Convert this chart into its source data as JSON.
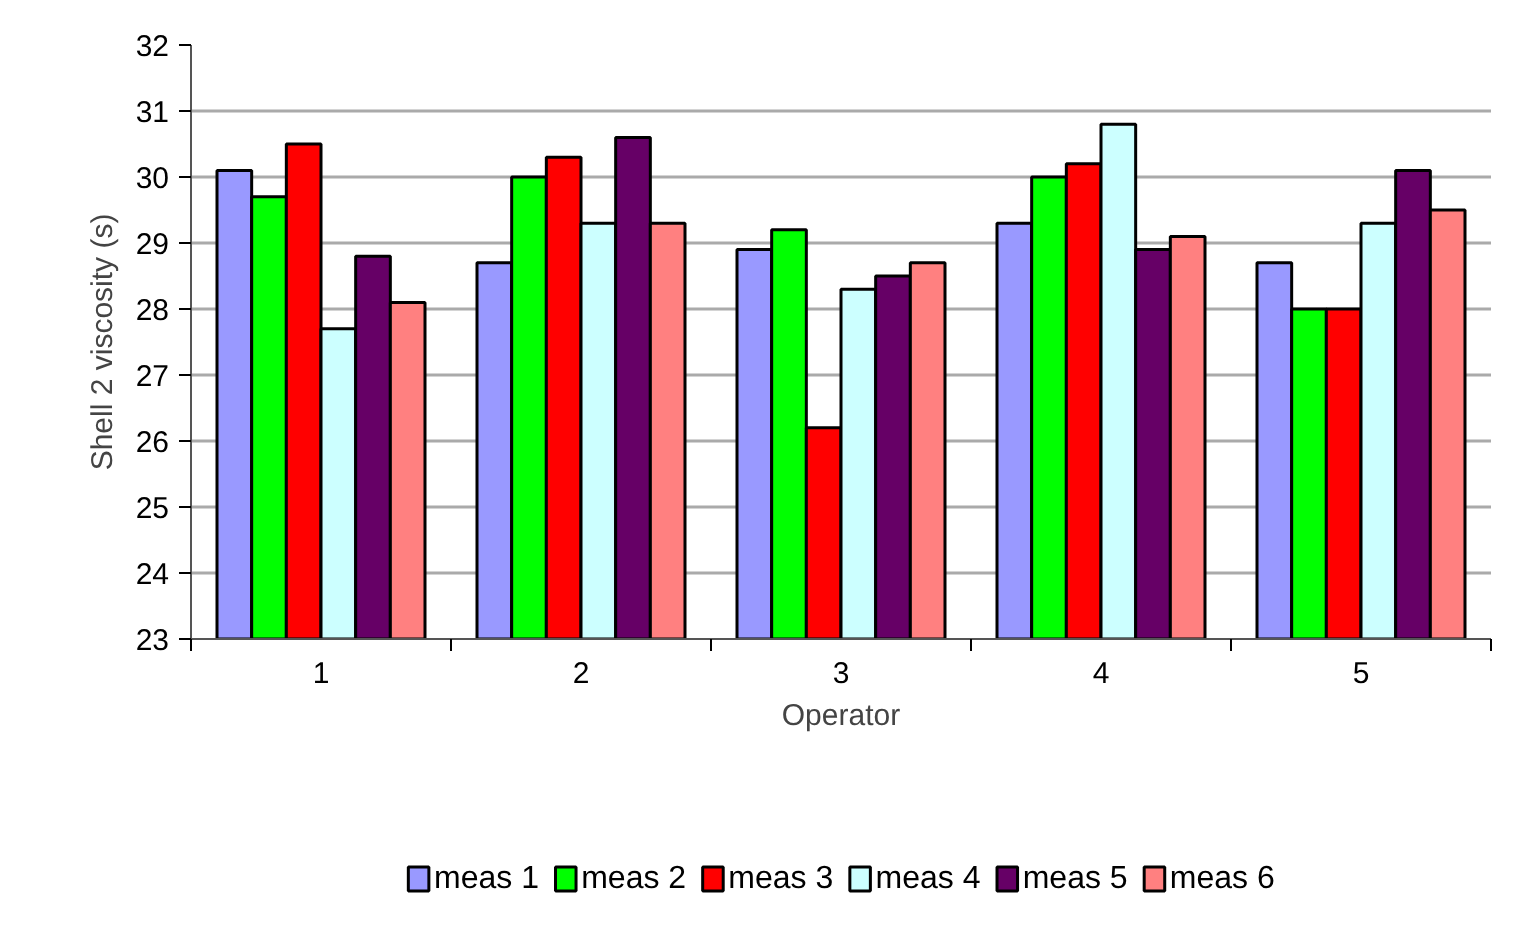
{
  "chart_data": {
    "type": "bar",
    "xlabel": "Operator",
    "ylabel": "Shell 2 viscosity (s)",
    "categories": [
      "1",
      "2",
      "3",
      "4",
      "5"
    ],
    "series": [
      {
        "name": "meas 1",
        "color": "#9999ff",
        "values": [
          30.1,
          28.7,
          28.9,
          29.3,
          28.7
        ]
      },
      {
        "name": "meas 2",
        "color": "#00ff00",
        "values": [
          29.7,
          30.0,
          29.2,
          30.0,
          28.0
        ]
      },
      {
        "name": "meas 3",
        "color": "#ff0000",
        "values": [
          30.5,
          30.3,
          26.2,
          30.2,
          28.0
        ]
      },
      {
        "name": "meas 4",
        "color": "#ccffff",
        "values": [
          27.7,
          29.3,
          28.3,
          30.8,
          29.3
        ]
      },
      {
        "name": "meas 5",
        "color": "#660066",
        "values": [
          28.8,
          30.6,
          28.5,
          28.9,
          30.1
        ]
      },
      {
        "name": "meas 6",
        "color": "#ff8080",
        "values": [
          28.1,
          29.3,
          28.7,
          29.1,
          29.5
        ]
      }
    ],
    "ylim": [
      23,
      32
    ],
    "yticks": [
      23,
      24,
      25,
      26,
      27,
      28,
      29,
      30,
      31,
      32
    ],
    "grid": "y",
    "legend": "bottom"
  }
}
